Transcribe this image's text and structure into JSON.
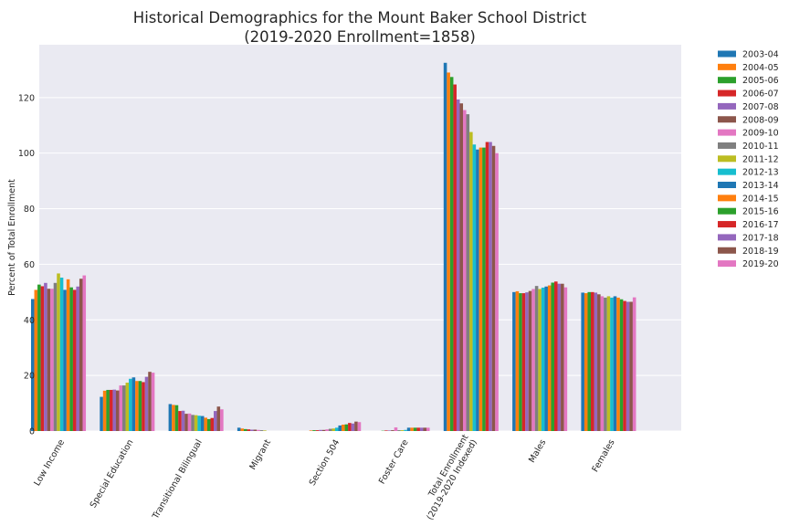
{
  "chart_data": {
    "type": "bar",
    "title": "Historical Demographics for the Mount Baker School District",
    "subtitle": "(2019-2020 Enrollment=1858)",
    "xlabel": "",
    "ylabel": "Percent of Total Enrollment",
    "ylim": [
      0,
      139
    ],
    "yticks": [
      0,
      20,
      40,
      60,
      80,
      100,
      120
    ],
    "grid": true,
    "legend_position": "outside-right",
    "categories": [
      "Low Income",
      "Special Education",
      "Transitional Bilingual",
      "Migrant",
      "Section 504",
      "Foster Care",
      "Total Enrollment\n(2019-2020 Indexed)",
      "Males",
      "Females"
    ],
    "series": [
      {
        "name": "2003-04",
        "color": "#1f77b4",
        "values": [
          47.5,
          12.3,
          9.7,
          1.2,
          0.0,
          0.0,
          132.5,
          50.0,
          49.8
        ]
      },
      {
        "name": "2004-05",
        "color": "#ff7f0e",
        "values": [
          50.8,
          14.5,
          9.4,
          0.9,
          0.2,
          0.0,
          129.0,
          50.3,
          49.6
        ]
      },
      {
        "name": "2005-06",
        "color": "#2ca02c",
        "values": [
          52.7,
          14.8,
          9.3,
          0.7,
          0.3,
          0.1,
          127.4,
          49.6,
          50.0
        ]
      },
      {
        "name": "2006-07",
        "color": "#d62728",
        "values": [
          52.1,
          14.8,
          7.2,
          0.6,
          0.3,
          0.2,
          124.7,
          49.6,
          50.0
        ]
      },
      {
        "name": "2007-08",
        "color": "#9467bd",
        "values": [
          53.3,
          14.9,
          7.3,
          0.5,
          0.4,
          0.2,
          119.3,
          49.9,
          49.8
        ]
      },
      {
        "name": "2008-09",
        "color": "#8c564b",
        "values": [
          51.2,
          14.6,
          6.2,
          0.5,
          0.4,
          0.3,
          117.9,
          50.4,
          49.2
        ]
      },
      {
        "name": "2009-10",
        "color": "#e377c2",
        "values": [
          51.2,
          16.4,
          6.3,
          0.4,
          0.6,
          1.3,
          115.5,
          51.1,
          48.5
        ]
      },
      {
        "name": "2010-11",
        "color": "#7f7f7f",
        "values": [
          53.3,
          16.4,
          5.8,
          0.3,
          0.8,
          0.3,
          114.0,
          52.2,
          48.0
        ]
      },
      {
        "name": "2011-12",
        "color": "#bcbd22",
        "values": [
          56.7,
          17.4,
          5.7,
          0.2,
          0.9,
          0.3,
          107.6,
          51.1,
          48.5
        ]
      },
      {
        "name": "2012-13",
        "color": "#17becf",
        "values": [
          55.2,
          18.8,
          5.5,
          0.0,
          1.2,
          0.4,
          103.1,
          51.6,
          48.0
        ]
      },
      {
        "name": "2013-14",
        "color": "#1f77b4",
        "values": [
          50.8,
          19.3,
          5.4,
          0.0,
          2.0,
          1.2,
          101.3,
          52.0,
          48.5
        ]
      },
      {
        "name": "2014-15",
        "color": "#ff7f0e",
        "values": [
          54.6,
          18.0,
          4.8,
          0.0,
          2.3,
          1.2,
          102.0,
          52.4,
          48.0
        ]
      },
      {
        "name": "2015-16",
        "color": "#2ca02c",
        "values": [
          51.7,
          18.0,
          4.3,
          0.0,
          2.4,
          1.2,
          102.0,
          53.4,
          47.4
        ]
      },
      {
        "name": "2016-17",
        "color": "#d62728",
        "values": [
          50.8,
          17.6,
          4.7,
          0.0,
          2.9,
          1.2,
          104.0,
          53.8,
          46.8
        ]
      },
      {
        "name": "2017-18",
        "color": "#9467bd",
        "values": [
          52.0,
          19.5,
          7.2,
          0.0,
          2.7,
          1.2,
          104.0,
          53.0,
          46.5
        ]
      },
      {
        "name": "2018-19",
        "color": "#8c564b",
        "values": [
          54.8,
          21.3,
          8.8,
          0.0,
          3.4,
          1.2,
          102.6,
          53.0,
          46.5
        ]
      },
      {
        "name": "2019-20",
        "color": "#e377c2",
        "values": [
          56.0,
          21.0,
          7.8,
          0.0,
          3.2,
          1.2,
          100.0,
          51.7,
          48.1
        ]
      }
    ]
  }
}
